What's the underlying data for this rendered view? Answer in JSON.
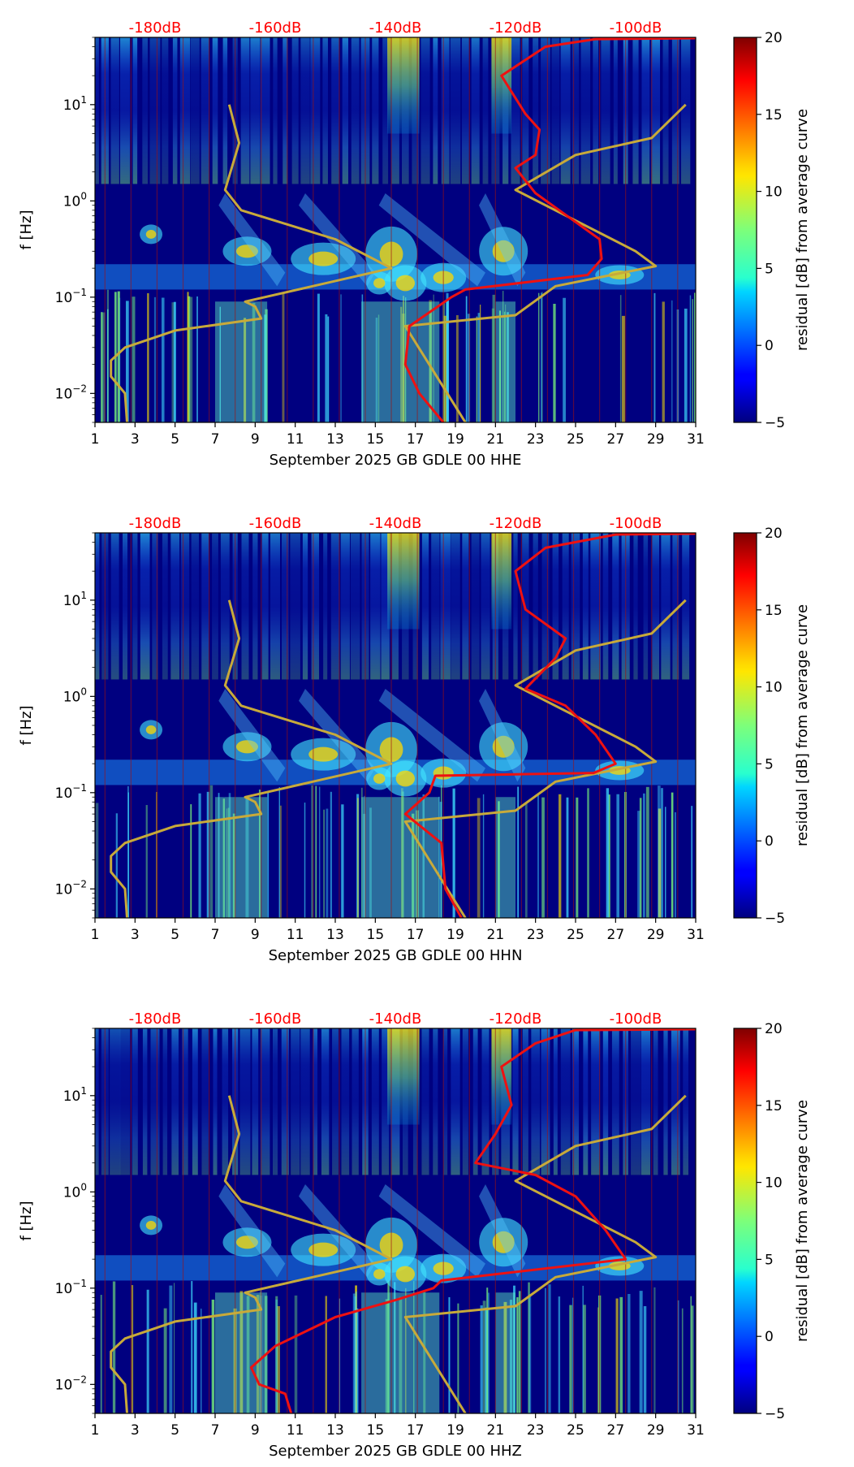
{
  "colors": {
    "db_label": "#ff0000",
    "psd_line": "#ee1111",
    "model_line": "#c8aa3a",
    "plot_bg": "#000080"
  },
  "chart_data": [
    {
      "type": "heatmap",
      "title": "",
      "xlabel": "September 2025 GB GDLE 00 HHE",
      "ylabel": "f [Hz]",
      "x_ticks": [
        "1",
        "3",
        "5",
        "7",
        "9",
        "11",
        "13",
        "15",
        "17",
        "19",
        "21",
        "23",
        "25",
        "27",
        "29",
        "31"
      ],
      "xlim": [
        1,
        31
      ],
      "y_ticks": [
        {
          "value": 10,
          "base": "10",
          "exp": "1"
        },
        {
          "value": 1,
          "base": "10",
          "exp": "0"
        },
        {
          "value": 0.1,
          "base": "10",
          "exp": "−1"
        },
        {
          "value": 0.01,
          "base": "10",
          "exp": "−2"
        }
      ],
      "ylim": [
        0.005,
        50
      ],
      "top_db_labels": [
        "-180dB",
        "-160dB",
        "-140dB",
        "-120dB",
        "-100dB"
      ],
      "top_db_days": [
        4,
        10,
        16,
        22,
        28
      ],
      "colorbar": {
        "label": "residual [dB] from average curve",
        "min": -5,
        "max": 20,
        "ticks": [
          "20",
          "15",
          "10",
          "5",
          "0",
          "−5"
        ]
      },
      "model_curve_points": [
        [
          7.7,
          10
        ],
        [
          8.2,
          4
        ],
        [
          7.5,
          1.3
        ],
        [
          8.3,
          0.8
        ],
        [
          13.0,
          0.4
        ],
        [
          15.8,
          0.2
        ],
        [
          8.5,
          0.09
        ],
        [
          9.0,
          0.08
        ],
        [
          9.3,
          0.06
        ],
        [
          5.0,
          0.045
        ],
        [
          2.5,
          0.03
        ],
        [
          1.8,
          0.022
        ],
        [
          1.8,
          0.015
        ],
        [
          2.5,
          0.01
        ],
        [
          2.6,
          0.005
        ]
      ],
      "model_curve_points_2": [
        [
          30.5,
          10
        ],
        [
          28.8,
          4.5
        ],
        [
          25.0,
          3.0
        ],
        [
          22.0,
          1.3
        ],
        [
          28.0,
          0.3
        ],
        [
          29.0,
          0.21
        ],
        [
          24.0,
          0.13
        ],
        [
          22.0,
          0.065
        ],
        [
          16.5,
          0.05
        ],
        [
          19.5,
          0.005
        ]
      ],
      "psd_curve_points": [
        [
          18.4,
          0.005
        ],
        [
          17.2,
          0.01
        ],
        [
          16.5,
          0.02
        ],
        [
          16.7,
          0.05
        ],
        [
          18.8,
          0.1
        ],
        [
          19.5,
          0.12
        ],
        [
          25.6,
          0.17
        ],
        [
          26.3,
          0.25
        ],
        [
          26.2,
          0.4
        ],
        [
          23.0,
          1.2
        ],
        [
          22.0,
          2.2
        ],
        [
          23.0,
          3.0
        ],
        [
          23.2,
          5.5
        ],
        [
          22.5,
          8.0
        ],
        [
          21.3,
          20.0
        ],
        [
          23.5,
          40.0
        ],
        [
          26.0,
          48.0
        ],
        [
          31.0,
          49.0
        ]
      ]
    },
    {
      "type": "heatmap",
      "title": "",
      "xlabel": "September 2025 GB GDLE 00 HHN",
      "ylabel": "f [Hz]",
      "x_ticks": [
        "1",
        "3",
        "5",
        "7",
        "9",
        "11",
        "13",
        "15",
        "17",
        "19",
        "21",
        "23",
        "25",
        "27",
        "29",
        "31"
      ],
      "xlim": [
        1,
        31
      ],
      "y_ticks": [
        {
          "value": 10,
          "base": "10",
          "exp": "1"
        },
        {
          "value": 1,
          "base": "10",
          "exp": "0"
        },
        {
          "value": 0.1,
          "base": "10",
          "exp": "−1"
        },
        {
          "value": 0.01,
          "base": "10",
          "exp": "−2"
        }
      ],
      "ylim": [
        0.005,
        50
      ],
      "top_db_labels": [
        "-180dB",
        "-160dB",
        "-140dB",
        "-120dB",
        "-100dB"
      ],
      "top_db_days": [
        4,
        10,
        16,
        22,
        28
      ],
      "colorbar": {
        "label": "residual [dB] from average curve",
        "min": -5,
        "max": 20,
        "ticks": [
          "20",
          "15",
          "10",
          "5",
          "0",
          "−5"
        ]
      },
      "model_curve_points": [
        [
          7.7,
          10
        ],
        [
          8.2,
          4
        ],
        [
          7.5,
          1.3
        ],
        [
          8.3,
          0.8
        ],
        [
          13.0,
          0.4
        ],
        [
          15.8,
          0.2
        ],
        [
          8.5,
          0.09
        ],
        [
          9.0,
          0.08
        ],
        [
          9.3,
          0.06
        ],
        [
          5.0,
          0.045
        ],
        [
          2.5,
          0.03
        ],
        [
          1.8,
          0.022
        ],
        [
          1.8,
          0.015
        ],
        [
          2.5,
          0.01
        ],
        [
          2.6,
          0.005
        ]
      ],
      "model_curve_points_2": [
        [
          30.5,
          10
        ],
        [
          28.8,
          4.5
        ],
        [
          25.0,
          3.0
        ],
        [
          22.0,
          1.3
        ],
        [
          28.0,
          0.3
        ],
        [
          29.0,
          0.21
        ],
        [
          24.0,
          0.13
        ],
        [
          22.0,
          0.065
        ],
        [
          16.5,
          0.05
        ],
        [
          19.5,
          0.005
        ]
      ],
      "psd_curve_points": [
        [
          19.3,
          0.005
        ],
        [
          18.5,
          0.01
        ],
        [
          18.3,
          0.03
        ],
        [
          16.5,
          0.06
        ],
        [
          17.7,
          0.1
        ],
        [
          18.0,
          0.15
        ],
        [
          25.9,
          0.16
        ],
        [
          27.0,
          0.2
        ],
        [
          26.0,
          0.4
        ],
        [
          24.5,
          0.8
        ],
        [
          22.5,
          1.2
        ],
        [
          24.0,
          2.5
        ],
        [
          24.5,
          4.0
        ],
        [
          22.5,
          8.0
        ],
        [
          22.0,
          20.0
        ],
        [
          23.5,
          35.0
        ],
        [
          27.0,
          48.0
        ],
        [
          31.0,
          49.0
        ]
      ]
    },
    {
      "type": "heatmap",
      "title": "",
      "xlabel": "September 2025 GB GDLE 00 HHZ",
      "ylabel": "f [Hz]",
      "x_ticks": [
        "1",
        "3",
        "5",
        "7",
        "9",
        "11",
        "13",
        "15",
        "17",
        "19",
        "21",
        "23",
        "25",
        "27",
        "29",
        "31"
      ],
      "xlim": [
        1,
        31
      ],
      "y_ticks": [
        {
          "value": 10,
          "base": "10",
          "exp": "1"
        },
        {
          "value": 1,
          "base": "10",
          "exp": "0"
        },
        {
          "value": 0.1,
          "base": "10",
          "exp": "−1"
        },
        {
          "value": 0.01,
          "base": "10",
          "exp": "−2"
        }
      ],
      "ylim": [
        0.005,
        50
      ],
      "top_db_labels": [
        "-180dB",
        "-160dB",
        "-140dB",
        "-120dB",
        "-100dB"
      ],
      "top_db_days": [
        4,
        10,
        16,
        22,
        28
      ],
      "colorbar": {
        "label": "residual [dB] from average curve",
        "min": -5,
        "max": 20,
        "ticks": [
          "20",
          "15",
          "10",
          "5",
          "0",
          "−5"
        ]
      },
      "model_curve_points": [
        [
          7.7,
          10
        ],
        [
          8.2,
          4
        ],
        [
          7.5,
          1.3
        ],
        [
          8.3,
          0.8
        ],
        [
          13.0,
          0.4
        ],
        [
          15.8,
          0.2
        ],
        [
          8.5,
          0.09
        ],
        [
          9.0,
          0.08
        ],
        [
          9.3,
          0.06
        ],
        [
          5.0,
          0.045
        ],
        [
          2.5,
          0.03
        ],
        [
          1.8,
          0.022
        ],
        [
          1.8,
          0.015
        ],
        [
          2.5,
          0.01
        ],
        [
          2.6,
          0.005
        ]
      ],
      "model_curve_points_2": [
        [
          30.5,
          10
        ],
        [
          28.8,
          4.5
        ],
        [
          25.0,
          3.0
        ],
        [
          22.0,
          1.3
        ],
        [
          28.0,
          0.3
        ],
        [
          29.0,
          0.21
        ],
        [
          24.0,
          0.13
        ],
        [
          22.0,
          0.065
        ],
        [
          16.5,
          0.05
        ],
        [
          19.5,
          0.005
        ]
      ],
      "psd_curve_points": [
        [
          10.8,
          0.005
        ],
        [
          10.5,
          0.008
        ],
        [
          9.2,
          0.01
        ],
        [
          8.8,
          0.015
        ],
        [
          10.0,
          0.025
        ],
        [
          13.0,
          0.05
        ],
        [
          16.0,
          0.075
        ],
        [
          17.9,
          0.1
        ],
        [
          18.3,
          0.12
        ],
        [
          27.5,
          0.2
        ],
        [
          26.5,
          0.4
        ],
        [
          25.0,
          0.9
        ],
        [
          23.0,
          1.5
        ],
        [
          20.0,
          2.0
        ],
        [
          21.0,
          4.0
        ],
        [
          21.8,
          8.0
        ],
        [
          21.3,
          20.0
        ],
        [
          23.0,
          35.0
        ],
        [
          25.0,
          48.0
        ],
        [
          31.0,
          49.0
        ]
      ]
    }
  ]
}
